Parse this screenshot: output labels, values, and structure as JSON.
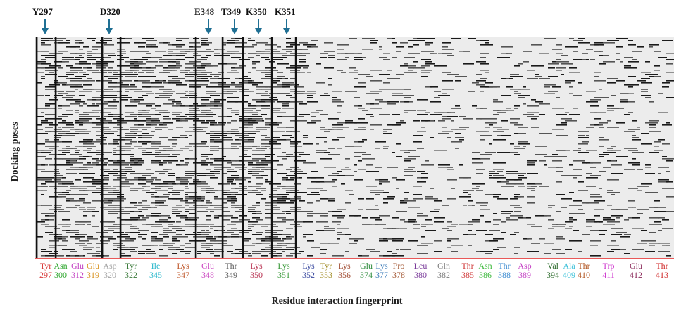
{
  "annotations": [
    "Y297",
    "D320",
    "E348",
    "T349",
    "K350",
    "K351"
  ],
  "ylabel": "Docking poses",
  "xlabel": "Residue interaction fingerprint",
  "colors": {
    "panel_bg": "#ececec",
    "bar": "#111111",
    "arrow": "#1f6f93"
  },
  "residues": [
    {
      "name": "Tyr",
      "num": "297",
      "color": "#d93a3a"
    },
    {
      "name": "Asn",
      "num": "300",
      "color": "#2aa52a"
    },
    {
      "name": "Glu",
      "num": "312",
      "color": "#c23fc2"
    },
    {
      "name": "Glu",
      "num": "319",
      "color": "#d8921f"
    },
    {
      "name": "Asp",
      "num": "320",
      "color": "#a3a3a3"
    },
    {
      "name": "Tyr",
      "num": "322",
      "color": "#3a7a3a"
    },
    {
      "name": "Ile",
      "num": "345",
      "color": "#2ab8cc"
    },
    {
      "name": "Lys",
      "num": "347",
      "color": "#c0592c"
    },
    {
      "name": "Glu",
      "num": "348",
      "color": "#c93fbf"
    },
    {
      "name": "Thr",
      "num": "349",
      "color": "#5a5a5a"
    },
    {
      "name": "Lys",
      "num": "350",
      "color": "#b83050"
    },
    {
      "name": "Lys",
      "num": "351",
      "color": "#3a9a3a"
    },
    {
      "name": "Lys",
      "num": "352",
      "color": "#3a4aa0"
    },
    {
      "name": "Tyr",
      "num": "353",
      "color": "#a08a20"
    },
    {
      "name": "Lys",
      "num": "356",
      "color": "#a04a30"
    },
    {
      "name": "Glu",
      "num": "374",
      "color": "#2a8a3a"
    },
    {
      "name": "Lys",
      "num": "377",
      "color": "#3a7ab8"
    },
    {
      "name": "Pro",
      "num": "378",
      "color": "#a0522d"
    },
    {
      "name": "Leu",
      "num": "380",
      "color": "#7a3a9a"
    },
    {
      "name": "Gln",
      "num": "382",
      "color": "#7a7a7a"
    },
    {
      "name": "Thr",
      "num": "385",
      "color": "#d03a3a"
    },
    {
      "name": "Asn",
      "num": "386",
      "color": "#3ab83a"
    },
    {
      "name": "Thr",
      "num": "388",
      "color": "#3a8ad0"
    },
    {
      "name": "Asp",
      "num": "389",
      "color": "#c43fc4"
    },
    {
      "name": "Val",
      "num": "394",
      "color": "#2a6a2a"
    },
    {
      "name": "Ala",
      "num": "409",
      "color": "#3ac0d8"
    },
    {
      "name": "Thr",
      "num": "410",
      "color": "#b0521d"
    },
    {
      "name": "Trp",
      "num": "411",
      "color": "#d040d0"
    },
    {
      "name": "Glu",
      "num": "412",
      "color": "#8a2a5a"
    },
    {
      "name": "Thr",
      "num": "413",
      "color": "#d02a2a"
    }
  ]
}
